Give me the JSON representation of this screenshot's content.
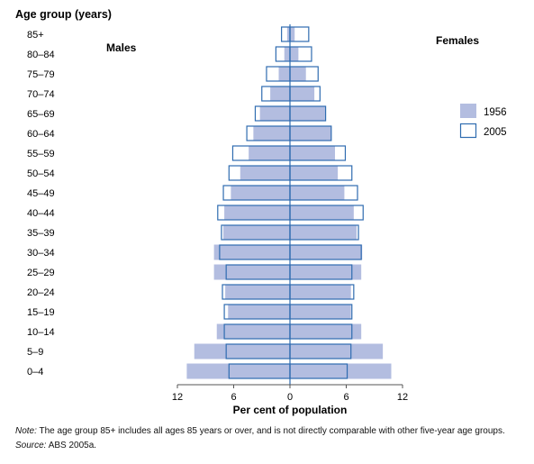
{
  "chart_data": {
    "type": "bar",
    "orientation": "horizontal-population-pyramid",
    "y_axis_title": "Age group (years)",
    "xlabel": "Per cent of population",
    "left_label": "Males",
    "right_label": "Females",
    "x_ticks": [
      "12",
      "6",
      "0",
      "6",
      "12"
    ],
    "x_range": [
      -12,
      12
    ],
    "categories": [
      "0–4",
      "5–9",
      "10–14",
      "15–19",
      "20–24",
      "25–29",
      "30–34",
      "35–39",
      "40–44",
      "45–49",
      "50–54",
      "55–59",
      "60–64",
      "65–69",
      "70–74",
      "75–79",
      "80–84",
      "85+"
    ],
    "series": [
      {
        "name": "1956",
        "style": "filled",
        "color": "#b3bde0",
        "males": [
          11.0,
          10.2,
          7.8,
          6.6,
          6.9,
          8.1,
          8.1,
          7.1,
          7.0,
          6.3,
          5.3,
          4.4,
          3.9,
          3.2,
          2.1,
          1.2,
          0.6,
          0.3
        ],
        "females": [
          10.8,
          9.9,
          7.6,
          6.5,
          6.5,
          7.6,
          7.7,
          7.1,
          6.8,
          5.8,
          5.1,
          4.8,
          4.4,
          3.8,
          2.6,
          1.7,
          0.9,
          0.5
        ]
      },
      {
        "name": "2005",
        "style": "outline",
        "color": "#2f6cb0",
        "males": [
          6.5,
          6.8,
          7.0,
          7.0,
          7.2,
          6.8,
          7.5,
          7.3,
          7.7,
          7.1,
          6.5,
          6.1,
          4.6,
          3.7,
          3.0,
          2.5,
          1.5,
          0.9
        ],
        "females": [
          6.1,
          6.5,
          6.6,
          6.6,
          6.8,
          6.6,
          7.6,
          7.3,
          7.8,
          7.2,
          6.6,
          5.9,
          4.4,
          3.8,
          3.2,
          3.0,
          2.3,
          2.0
        ]
      }
    ],
    "legend_position": "right",
    "grid": false
  },
  "note_label": "Note:",
  "note_text": " The age group 85+ includes all ages 85 years or over, and is not directly comparable with other five-year age groups.",
  "source_label": "Source:",
  "source_text": " ABS 2005a."
}
